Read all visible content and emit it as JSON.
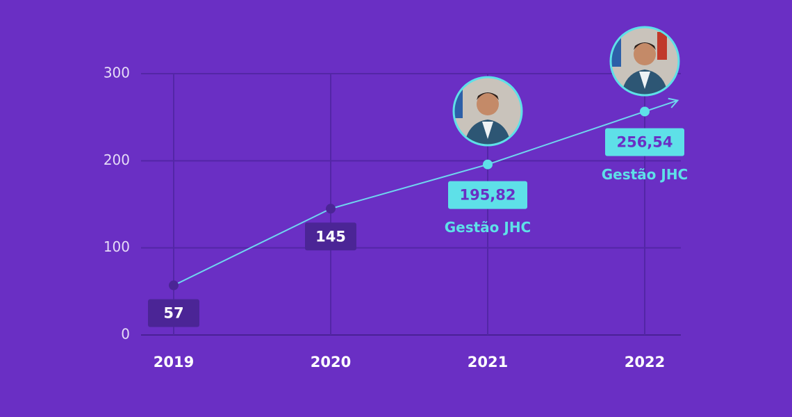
{
  "chart_data": {
    "type": "line",
    "categories": [
      "2019",
      "2020",
      "2021",
      "2022"
    ],
    "values": [
      57,
      145,
      195.82,
      256.54
    ],
    "value_labels": [
      "57",
      "145",
      "195,82",
      "256,54"
    ],
    "value_notes": [
      null,
      null,
      "Gestão JHC",
      "Gestão JHC"
    ],
    "color": "#6fd6ef",
    "ylim": [
      0,
      300
    ],
    "yticks": [
      0,
      100,
      200,
      300
    ],
    "grid": true
  }
}
